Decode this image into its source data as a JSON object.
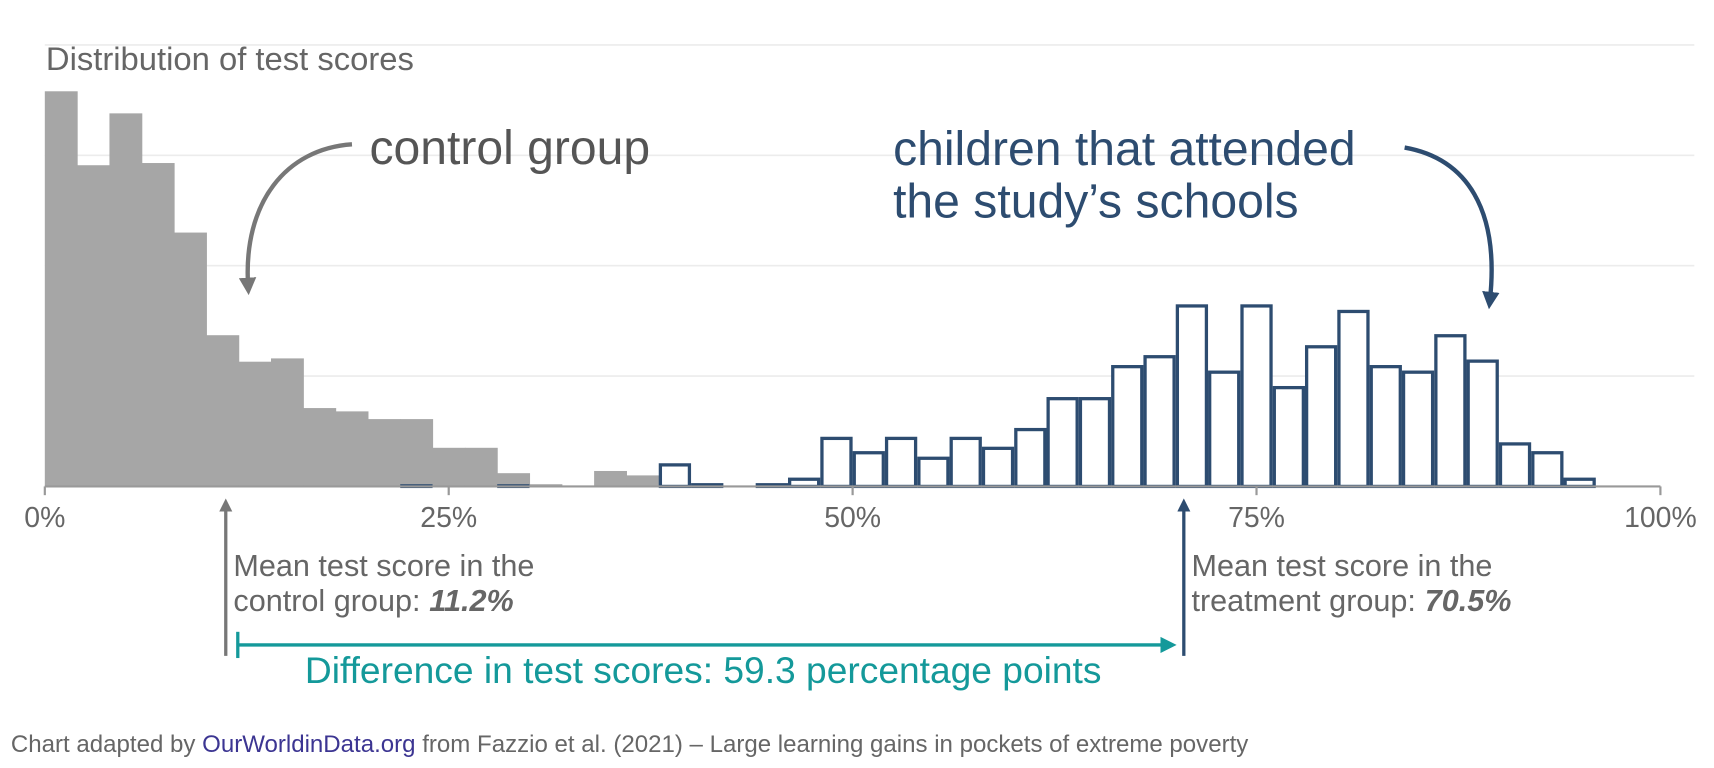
{
  "chart_data": {
    "type": "histogram",
    "title": "Distribution of test scores",
    "bins": [
      0,
      2,
      4,
      6,
      8,
      10,
      12,
      14,
      16,
      18,
      20,
      22,
      24,
      26,
      28,
      30,
      32,
      34,
      36,
      38,
      40,
      42,
      44,
      46,
      48,
      50,
      52,
      54,
      56,
      58,
      60,
      62,
      64,
      66,
      68,
      70,
      72,
      74,
      76,
      78,
      80,
      82,
      84,
      86,
      88,
      90,
      92,
      94,
      96
    ],
    "series": [
      {
        "name": "control group",
        "color": "#a6a6a6",
        "values": [
          3.58,
          2.91,
          3.38,
          2.93,
          2.3,
          1.37,
          1.13,
          1.16,
          0.71,
          0.68,
          0.61,
          0.61,
          0.35,
          0.35,
          0.12,
          0.02,
          0,
          0.14,
          0.1,
          0,
          0,
          0,
          0,
          0,
          0,
          0,
          0,
          0,
          0,
          0,
          0,
          0,
          0,
          0,
          0,
          0,
          0,
          0,
          0,
          0,
          0,
          0,
          0,
          0,
          0,
          0,
          0,
          0
        ]
      },
      {
        "name": "children that attended the study’s schools",
        "color": "#2d4c70",
        "fill": "#ffffff",
        "values": [
          0,
          0,
          0,
          0,
          0,
          0,
          0,
          0,
          0,
          0,
          0,
          0.02,
          0,
          0,
          0.02,
          0,
          0,
          0,
          0,
          0.21,
          0.03,
          0,
          0.03,
          0.08,
          0.45,
          0.32,
          0.45,
          0.27,
          0.45,
          0.36,
          0.53,
          0.81,
          0.81,
          1.1,
          1.19,
          1.65,
          1.05,
          1.65,
          0.91,
          1.28,
          1.6,
          1.1,
          1.05,
          1.38,
          1.15,
          0.4,
          0.32,
          0.08
        ]
      }
    ],
    "xlim": [
      0,
      100
    ],
    "xticks": [
      {
        "value": 0,
        "label": "0%"
      },
      {
        "value": 25,
        "label": "25%"
      },
      {
        "value": 50,
        "label": "50%"
      },
      {
        "value": 75,
        "label": "75%"
      },
      {
        "value": 100,
        "label": "100%"
      }
    ],
    "ylim": [
      0,
      4.1
    ],
    "yticks": [
      1,
      2,
      3,
      4
    ],
    "grid": true,
    "annotations": [
      {
        "lines": [
          "Mean test score in the",
          "control group:"
        ],
        "value": 11.2,
        "value_label": "11.2%",
        "color": "#777777"
      },
      {
        "lines": [
          "Mean test score in the",
          "treatment group:"
        ],
        "value": 70.5,
        "value_label": "70.5%",
        "color": "#2d4c70"
      }
    ],
    "difference": {
      "text": "Difference in test scores: 59.3 percentage points",
      "color": "#14999a"
    }
  },
  "footer": {
    "prefix": "Chart adapted by",
    "link": "OurWorldinData.org",
    "suffix": "from Fazzio et al. (2021) – Large learning gains in pockets of extreme poverty"
  }
}
